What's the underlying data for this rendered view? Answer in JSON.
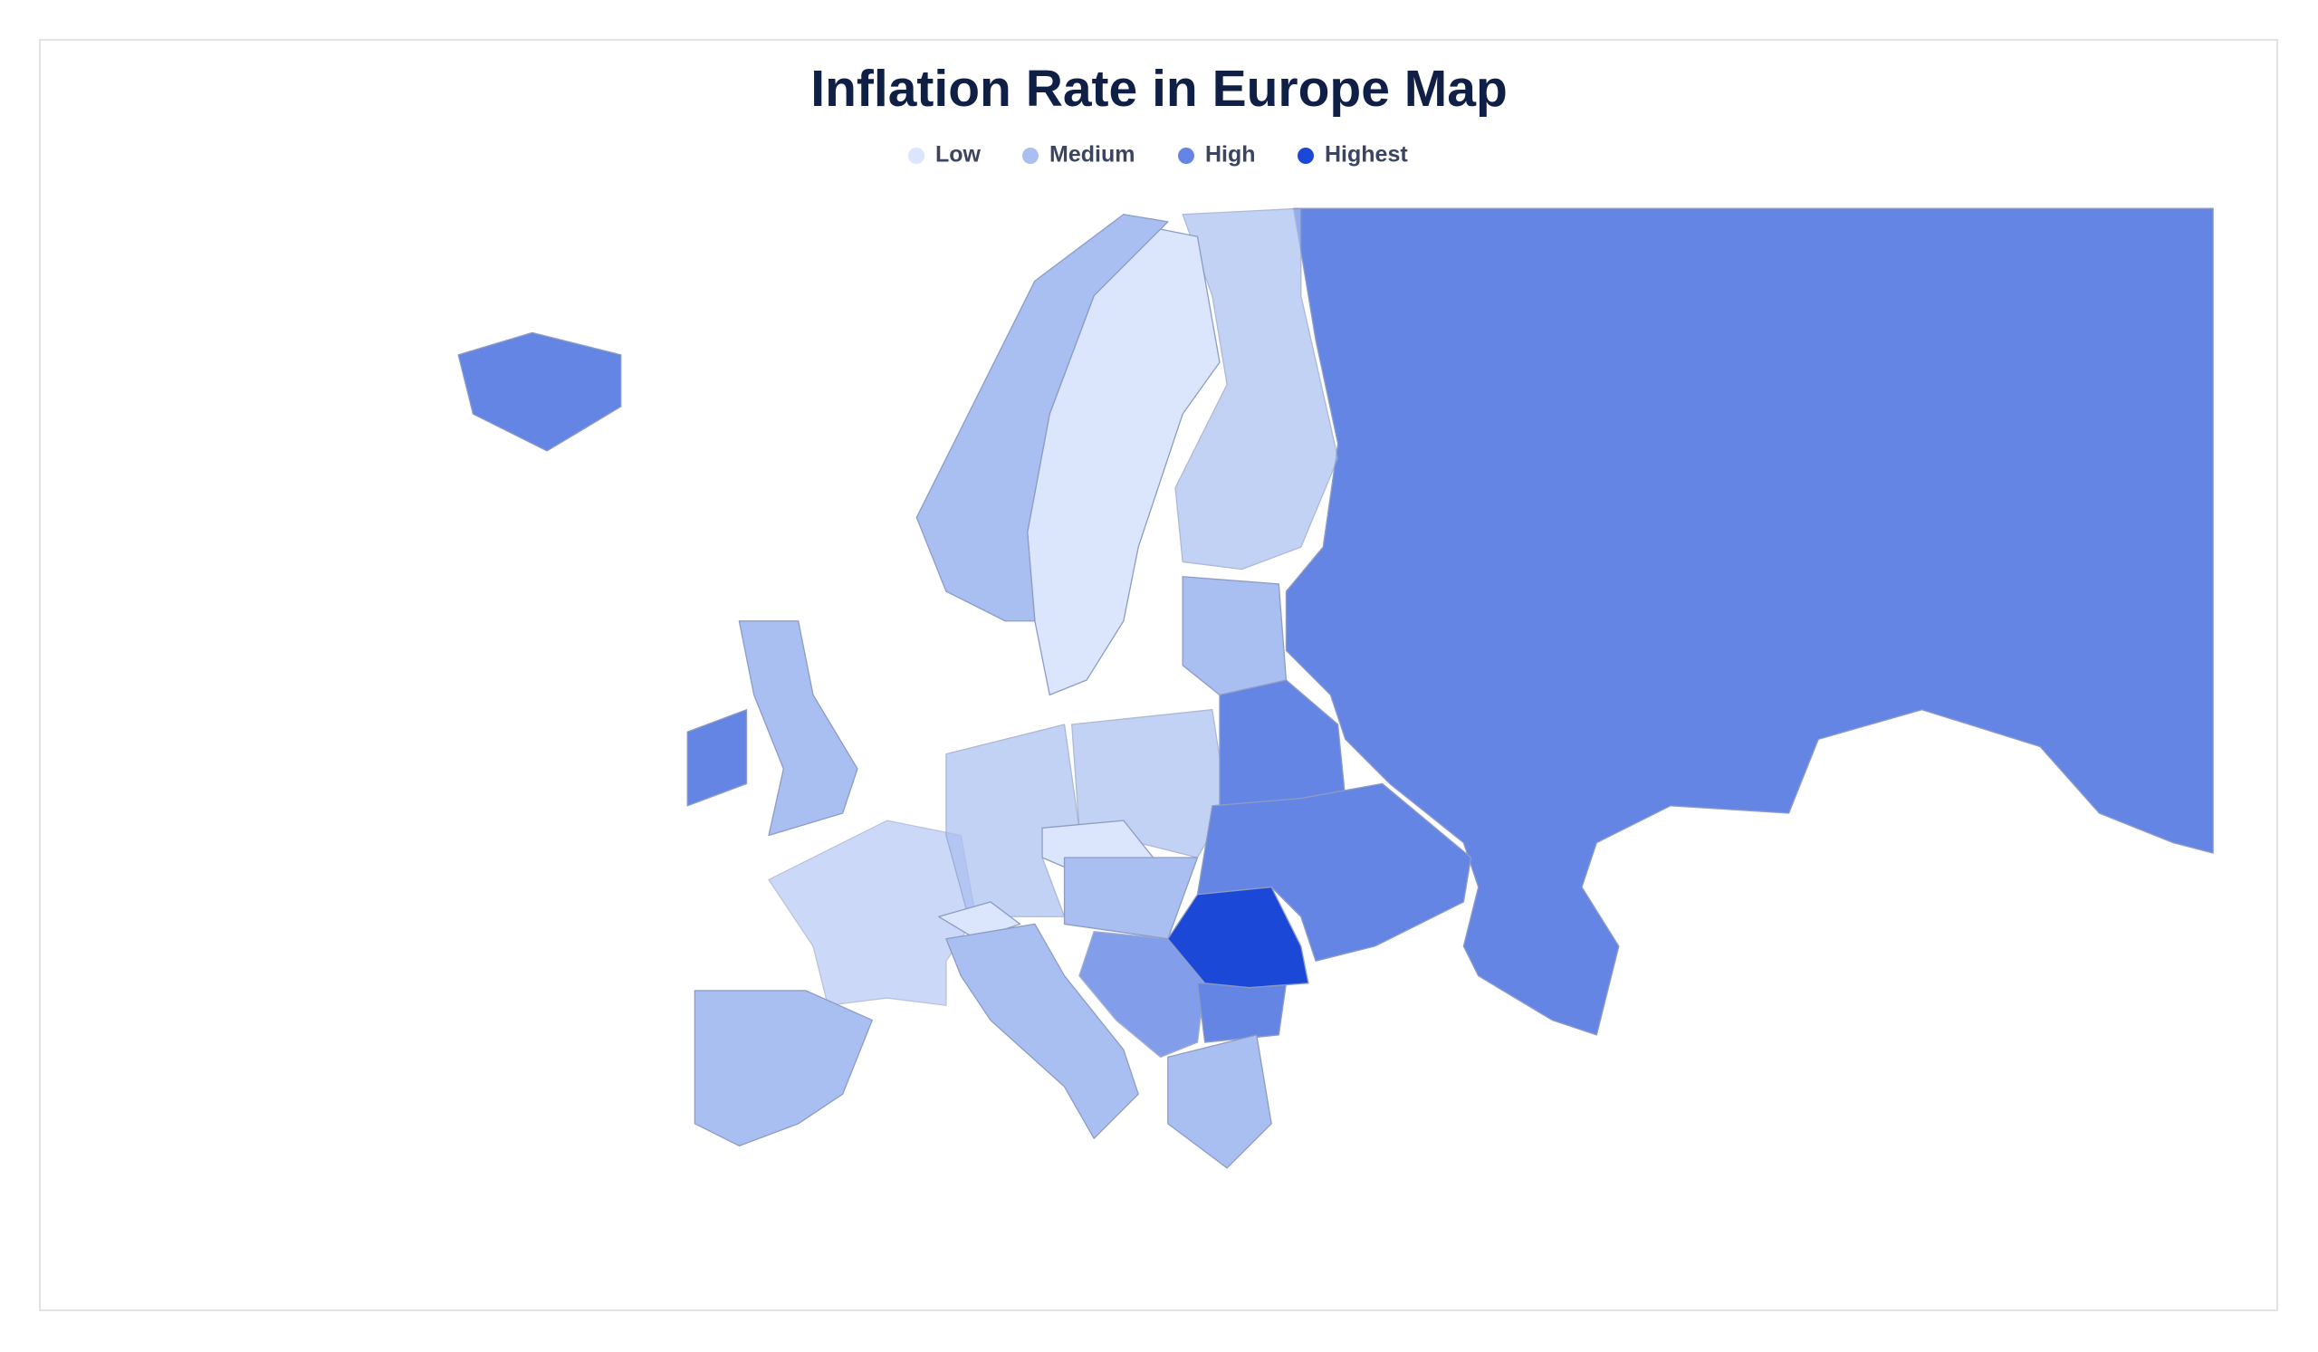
{
  "title": "Inflation Rate in Europe Map",
  "legend": [
    {
      "label": "Low",
      "color": "#dbe6fd"
    },
    {
      "label": "Medium",
      "color": "#a9bff2"
    },
    {
      "label": "High",
      "color": "#6485e4"
    },
    {
      "label": "Highest",
      "color": "#1c48d8"
    }
  ]
}
